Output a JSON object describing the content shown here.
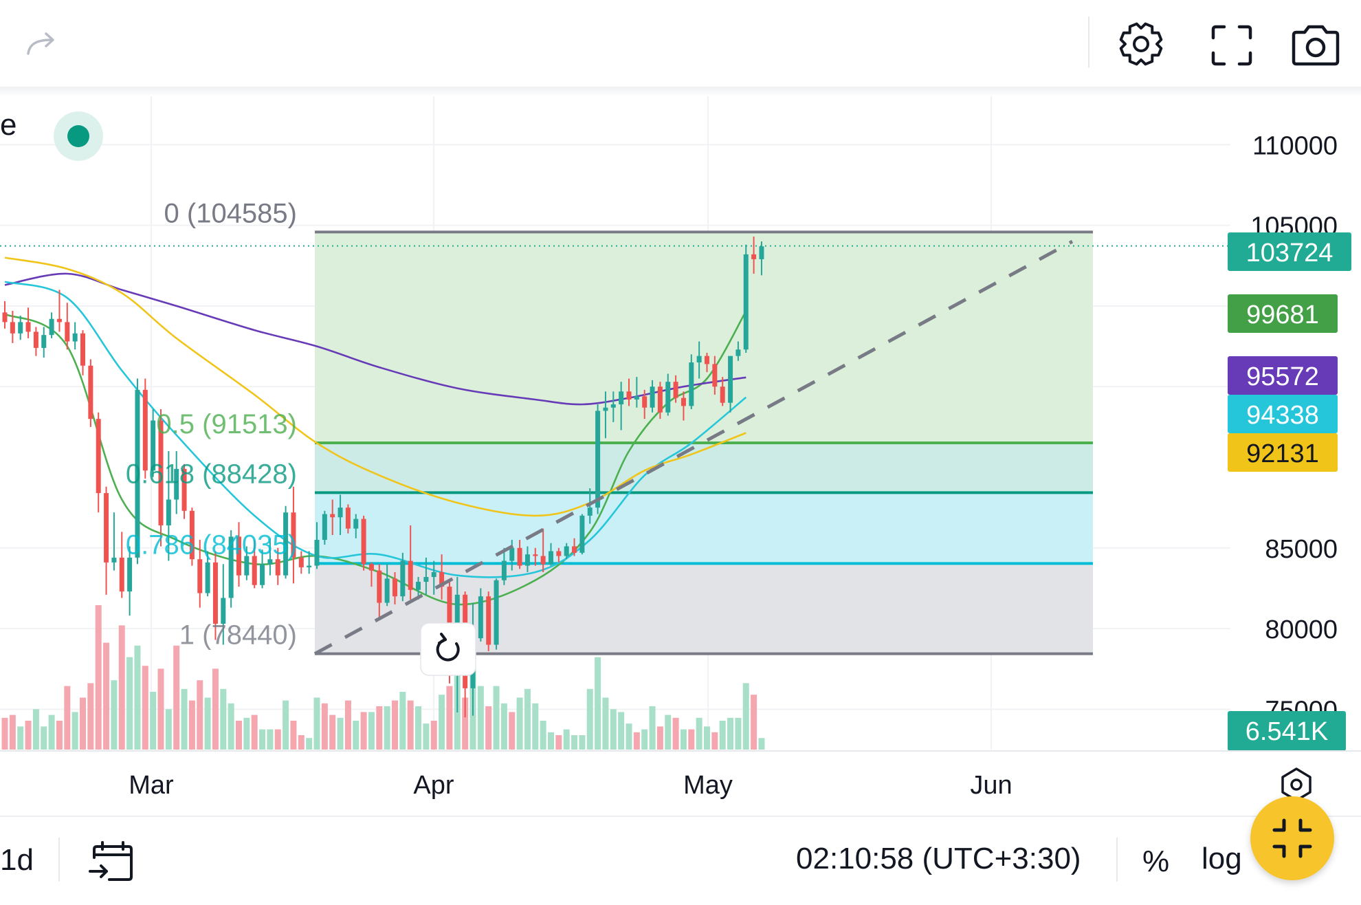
{
  "toolbar": {
    "redo_icon": "redo-arrow-icon",
    "settings_icon": "gear-icon",
    "fullscreen_icon": "fullscreen-icon",
    "screenshot_icon": "camera-icon"
  },
  "legend": {
    "title_fragment": "e",
    "status_color": "#089981"
  },
  "chart_data": {
    "type": "candlestick",
    "x_labels": [
      "Mar",
      "Apr",
      "May",
      "Jun"
    ],
    "y_ticks": [
      75000,
      80000,
      85000,
      105000,
      110000
    ],
    "y_tick_labels": [
      "75000",
      "80000",
      "85000",
      "105000",
      "110000"
    ],
    "ylim": [
      72500,
      113000
    ],
    "grid": true,
    "candles": [
      [
        99600,
        100300,
        98600,
        99000
      ],
      [
        99000,
        99700,
        97700,
        98300
      ],
      [
        98300,
        99400,
        97900,
        99000
      ],
      [
        99000,
        99900,
        98000,
        98400
      ],
      [
        98400,
        98700,
        96900,
        97400
      ],
      [
        97400,
        98700,
        96800,
        98200
      ],
      [
        98200,
        99600,
        98000,
        99200
      ],
      [
        99200,
        101000,
        98400,
        99000
      ],
      [
        99000,
        100200,
        97300,
        97800
      ],
      [
        97800,
        99000,
        97300,
        98300
      ],
      [
        98300,
        98500,
        95700,
        96300
      ],
      [
        96300,
        96700,
        92500,
        93000
      ],
      [
        93000,
        93400,
        87200,
        88400
      ],
      [
        88400,
        88800,
        82100,
        84100
      ],
      [
        84100,
        87200,
        83600,
        84400
      ],
      [
        84400,
        86000,
        81900,
        82300
      ],
      [
        82300,
        85100,
        80800,
        84400
      ],
      [
        84400,
        95500,
        84000,
        94800
      ],
      [
        94800,
        95500,
        89300,
        89800
      ],
      [
        89800,
        93600,
        89400,
        92900
      ],
      [
        92900,
        93600,
        85100,
        86400
      ],
      [
        86400,
        91000,
        84200,
        88000
      ],
      [
        88000,
        91000,
        87100,
        89900
      ],
      [
        89900,
        90200,
        86800,
        87300
      ],
      [
        87300,
        87500,
        83900,
        84300
      ],
      [
        84300,
        85500,
        81300,
        82200
      ],
      [
        82200,
        84800,
        82000,
        84100
      ],
      [
        84100,
        84800,
        79300,
        80300
      ],
      [
        80300,
        84000,
        79000,
        81900
      ],
      [
        81900,
        86100,
        81300,
        85700
      ],
      [
        85700,
        86600,
        82600,
        83300
      ],
      [
        83300,
        85100,
        83000,
        84500
      ],
      [
        84500,
        85500,
        82500,
        82700
      ],
      [
        82700,
        84900,
        82500,
        84000
      ],
      [
        84000,
        85600,
        83300,
        84300
      ],
      [
        84300,
        85000,
        82700,
        83300
      ],
      [
        83300,
        87600,
        83100,
        87200
      ],
      [
        87200,
        88800,
        82800,
        84400
      ],
      [
        84400,
        84800,
        83400,
        83800
      ],
      [
        83800,
        84800,
        83400,
        83900
      ],
      [
        83900,
        86600,
        83700,
        85500
      ],
      [
        85500,
        87300,
        85200,
        87100
      ],
      [
        87100,
        88000,
        85800,
        86900
      ],
      [
        86900,
        88300,
        85800,
        87500
      ],
      [
        87500,
        87700,
        85900,
        86200
      ],
      [
        86200,
        87100,
        85600,
        86800
      ],
      [
        86800,
        87000,
        83600,
        84000
      ],
      [
        84000,
        84100,
        82600,
        83600
      ],
      [
        83600,
        84000,
        80700,
        81600
      ],
      [
        81600,
        84000,
        81400,
        83100
      ],
      [
        83100,
        83500,
        81500,
        82000
      ],
      [
        82000,
        84700,
        81700,
        84200
      ],
      [
        84200,
        86400,
        81800,
        82400
      ],
      [
        82400,
        83200,
        81800,
        82900
      ],
      [
        82900,
        84400,
        82100,
        83200
      ],
      [
        83200,
        84200,
        82100,
        83500
      ],
      [
        83500,
        84600,
        81800,
        82600
      ],
      [
        82600,
        83000,
        76600,
        78600
      ],
      [
        78600,
        83200,
        74800,
        82100
      ],
      [
        82100,
        82300,
        74500,
        76300
      ],
      [
        76300,
        81600,
        74600,
        79400
      ],
      [
        79400,
        82500,
        79200,
        82000
      ],
      [
        82000,
        82300,
        78600,
        79000
      ],
      [
        79000,
        83100,
        78700,
        83000
      ],
      [
        83000,
        85000,
        82700,
        84200
      ],
      [
        84200,
        85500,
        83600,
        85000
      ],
      [
        85000,
        85500,
        83700,
        83900
      ],
      [
        83900,
        85100,
        83500,
        84600
      ],
      [
        84600,
        85000,
        83900,
        84500
      ],
      [
        84500,
        86200,
        83500,
        84000
      ],
      [
        84000,
        85300,
        83900,
        84800
      ],
      [
        84800,
        85000,
        84100,
        84500
      ],
      [
        84500,
        85300,
        84300,
        85100
      ],
      [
        85100,
        85600,
        84500,
        84700
      ],
      [
        84700,
        87100,
        84600,
        87000
      ],
      [
        87000,
        88700,
        86500,
        87500
      ],
      [
        87500,
        93900,
        87100,
        93500
      ],
      [
        93500,
        94700,
        91800,
        93700
      ],
      [
        93700,
        94700,
        92800,
        93900
      ],
      [
        93900,
        95300,
        92300,
        94700
      ],
      [
        94700,
        95500,
        93800,
        94200
      ],
      [
        94200,
        95600,
        93700,
        94400
      ],
      [
        94400,
        94800,
        93000,
        93700
      ],
      [
        93700,
        95400,
        93400,
        95000
      ],
      [
        95000,
        95300,
        93000,
        93400
      ],
      [
        93400,
        95800,
        93200,
        95300
      ],
      [
        95300,
        95700,
        94000,
        94300
      ],
      [
        94300,
        94700,
        92900,
        93800
      ],
      [
        93800,
        97000,
        93600,
        96500
      ],
      [
        96500,
        97800,
        95500,
        96900
      ],
      [
        96900,
        97100,
        95900,
        96400
      ],
      [
        96400,
        96900,
        94500,
        95000
      ],
      [
        95000,
        95600,
        93800,
        94000
      ],
      [
        94000,
        96900,
        93400,
        96900
      ],
      [
        96900,
        97800,
        96600,
        97300
      ],
      [
        97300,
        103800,
        97100,
        103200
      ],
      [
        103200,
        104300,
        102000,
        102900
      ],
      [
        102900,
        104000,
        101900,
        103700
      ]
    ],
    "volume_bars": [
      [
        0.22,
        0
      ],
      [
        0.24,
        0
      ],
      [
        0.16,
        1
      ],
      [
        0.2,
        0
      ],
      [
        0.28,
        1
      ],
      [
        0.16,
        1
      ],
      [
        0.24,
        1
      ],
      [
        0.2,
        0
      ],
      [
        0.44,
        0
      ],
      [
        0.26,
        1
      ],
      [
        0.36,
        0
      ],
      [
        0.46,
        0
      ],
      [
        1.0,
        0
      ],
      [
        0.74,
        0
      ],
      [
        0.48,
        1
      ],
      [
        0.86,
        0
      ],
      [
        0.64,
        1
      ],
      [
        0.72,
        1
      ],
      [
        0.58,
        0
      ],
      [
        0.4,
        1
      ],
      [
        0.56,
        0
      ],
      [
        0.28,
        1
      ],
      [
        0.72,
        0
      ],
      [
        0.42,
        1
      ],
      [
        0.34,
        0
      ],
      [
        0.48,
        0
      ],
      [
        0.36,
        1
      ],
      [
        0.56,
        0
      ],
      [
        0.42,
        1
      ],
      [
        0.32,
        1
      ],
      [
        0.2,
        0
      ],
      [
        0.22,
        1
      ],
      [
        0.24,
        0
      ],
      [
        0.14,
        1
      ],
      [
        0.14,
        1
      ],
      [
        0.14,
        0
      ],
      [
        0.34,
        1
      ],
      [
        0.2,
        0
      ],
      [
        0.1,
        0
      ],
      [
        0.08,
        1
      ],
      [
        0.36,
        1
      ],
      [
        0.32,
        0
      ],
      [
        0.24,
        0
      ],
      [
        0.22,
        1
      ],
      [
        0.34,
        0
      ],
      [
        0.2,
        1
      ],
      [
        0.26,
        0
      ],
      [
        0.26,
        1
      ],
      [
        0.3,
        0
      ],
      [
        0.3,
        1
      ],
      [
        0.34,
        0
      ],
      [
        0.4,
        1
      ],
      [
        0.34,
        0
      ],
      [
        0.3,
        1
      ],
      [
        0.18,
        1
      ],
      [
        0.2,
        0
      ],
      [
        0.38,
        1
      ],
      [
        0.44,
        0
      ],
      [
        0.62,
        1
      ],
      [
        0.36,
        0
      ],
      [
        0.56,
        1
      ],
      [
        0.44,
        1
      ],
      [
        0.3,
        0
      ],
      [
        0.44,
        1
      ],
      [
        0.32,
        1
      ],
      [
        0.26,
        0
      ],
      [
        0.36,
        1
      ],
      [
        0.42,
        1
      ],
      [
        0.32,
        1
      ],
      [
        0.2,
        1
      ],
      [
        0.12,
        1
      ],
      [
        0.1,
        0
      ],
      [
        0.14,
        1
      ],
      [
        0.1,
        1
      ],
      [
        0.1,
        1
      ],
      [
        0.42,
        1
      ],
      [
        0.64,
        1
      ],
      [
        0.36,
        1
      ],
      [
        0.28,
        1
      ],
      [
        0.26,
        1
      ],
      [
        0.18,
        1
      ],
      [
        0.12,
        0
      ],
      [
        0.14,
        1
      ],
      [
        0.3,
        1
      ],
      [
        0.16,
        0
      ],
      [
        0.24,
        1
      ],
      [
        0.22,
        0
      ],
      [
        0.14,
        1
      ],
      [
        0.14,
        0
      ],
      [
        0.22,
        1
      ],
      [
        0.16,
        1
      ],
      [
        0.12,
        0
      ],
      [
        0.2,
        1
      ],
      [
        0.22,
        1
      ],
      [
        0.22,
        1
      ],
      [
        0.46,
        1
      ],
      [
        0.38,
        0
      ],
      [
        0.08,
        1
      ]
    ],
    "fibonacci": {
      "levels": [
        {
          "ratio_label": "0",
          "price": 104585,
          "label": "0 (104585)"
        },
        {
          "ratio_label": "0.5",
          "price": 91513,
          "label": "0.5 (91513)"
        },
        {
          "ratio_label": "0.618",
          "price": 88428,
          "label": "0.618 (88428)"
        },
        {
          "ratio_label": "0.786",
          "price": 84035,
          "label": "0.786 (84035)"
        },
        {
          "ratio_label": "1",
          "price": 78440,
          "label": "1 (78440)"
        }
      ],
      "zone_colors": [
        "#d9eed8",
        "#c9eae6",
        "#c6eff6",
        "#dfe1e6"
      ],
      "line_colors": [
        "#787b86",
        "#4caf50",
        "#089981",
        "#00bcd4",
        "#787b86"
      ]
    },
    "trend_line": {
      "start_price": 78440,
      "end_price": 104000,
      "color": "#787b86"
    },
    "moving_averages": [
      {
        "color": "#4caf50",
        "last_value": 99681,
        "label": "99681",
        "points": [
          [
            0,
            99500
          ],
          [
            8,
            97500
          ],
          [
            15,
            88000
          ],
          [
            22,
            85500
          ],
          [
            32,
            84000
          ],
          [
            40,
            84500
          ],
          [
            48,
            83500
          ],
          [
            58,
            81500
          ],
          [
            68,
            83000
          ],
          [
            75,
            86000
          ],
          [
            80,
            91000
          ],
          [
            85,
            94000
          ],
          [
            90,
            95500
          ],
          [
            95,
            99681
          ]
        ]
      },
      {
        "color": "#673ab7",
        "last_value": 95572,
        "label": "95572",
        "points": [
          [
            0,
            101300
          ],
          [
            8,
            102000
          ],
          [
            15,
            101000
          ],
          [
            22,
            100000
          ],
          [
            32,
            98500
          ],
          [
            40,
            97500
          ],
          [
            48,
            96200
          ],
          [
            58,
            94900
          ],
          [
            68,
            94200
          ],
          [
            74,
            93900
          ],
          [
            80,
            94300
          ],
          [
            87,
            95000
          ],
          [
            95,
            95572
          ]
        ]
      },
      {
        "color": "#26c6da",
        "last_value": 94338,
        "label": "94338",
        "points": [
          [
            0,
            101500
          ],
          [
            8,
            100500
          ],
          [
            15,
            96000
          ],
          [
            22,
            92000
          ],
          [
            32,
            87000
          ],
          [
            40,
            84500
          ],
          [
            48,
            84600
          ],
          [
            58,
            83300
          ],
          [
            68,
            83500
          ],
          [
            75,
            85500
          ],
          [
            82,
            89500
          ],
          [
            88,
            91500
          ],
          [
            95,
            94338
          ]
        ]
      },
      {
        "color": "#f0c419",
        "last_value": 92131,
        "label": "92131",
        "points": [
          [
            0,
            103000
          ],
          [
            8,
            102300
          ],
          [
            15,
            100800
          ],
          [
            22,
            98000
          ],
          [
            32,
            94500
          ],
          [
            40,
            91500
          ],
          [
            48,
            89500
          ],
          [
            58,
            87800
          ],
          [
            68,
            87000
          ],
          [
            75,
            87800
          ],
          [
            82,
            89800
          ],
          [
            88,
            90800
          ],
          [
            95,
            92131
          ]
        ]
      }
    ],
    "price_labels": [
      {
        "text": "103724",
        "value": 103724,
        "color": "#22ab94"
      },
      {
        "text": "99681",
        "value": 99681,
        "color": "#43a047"
      },
      {
        "text": "95572",
        "value": 95572,
        "color": "#673ab7"
      },
      {
        "text": "94338",
        "value": 94338,
        "color": "#26c6da"
      },
      {
        "text": "92131",
        "value": 92131,
        "color": "#f0c419"
      }
    ],
    "volume_label": {
      "text": "6.541K",
      "color": "#22ab94"
    },
    "last_price": 103724,
    "up_color": "#26a69a",
    "down_color": "#ef5350",
    "volume_up_color": "#a7dfc9",
    "volume_down_color": "#f4a7ae"
  },
  "bottom_bar": {
    "interval": "1d",
    "time_zone_clock": "02:10:58 (UTC+3:30)",
    "percent_label": "%",
    "log_label": "log",
    "go_to_date_icon": "calendar-arrow-icon",
    "collapse_icon": "collapse-arrows-icon"
  }
}
